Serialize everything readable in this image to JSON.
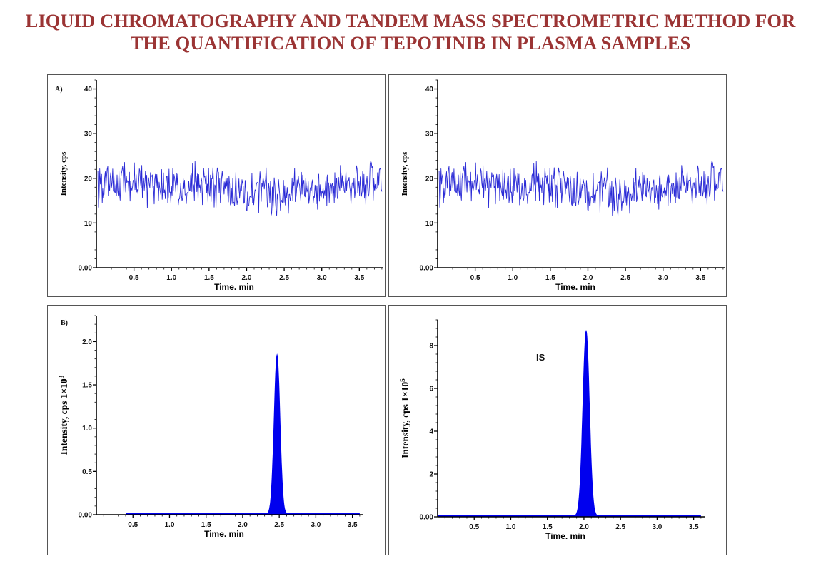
{
  "title_line1": "LIQUID CHROMATOGRAPHY AND TANDEM MASS SPECTROMETRIC METHOD FOR",
  "title_line2": "THE QUANTIFICATION OF TEPOTINIB IN PLASMA SAMPLES",
  "colors": {
    "title": "#9b3434",
    "trace": "#2a2ad6",
    "peak": "#0000ee"
  },
  "chart_data": [
    {
      "type": "line",
      "panel_label": "A)",
      "xlabel": "Time. min",
      "ylabel": "Intensity, cps",
      "xlim": [
        0.0,
        3.82
      ],
      "ylim": [
        0,
        42
      ],
      "xticks": [
        0.5,
        1.0,
        1.5,
        2.0,
        2.5,
        3.0,
        3.5
      ],
      "xtick_labels": [
        "0.5",
        "1.0",
        "1.5",
        "2.0",
        "2.5",
        "3.0",
        "3.5"
      ],
      "yticks": [
        0,
        10,
        20,
        30,
        40
      ],
      "ytick_labels": [
        "0.00",
        "10",
        "20",
        "30",
        "40"
      ],
      "grid": false,
      "series": [
        {
          "kind": "noise",
          "baseline": 18.0,
          "amplitude": 4.0,
          "min": 9.5,
          "max": 27.0,
          "points": 460,
          "seed": 7
        }
      ]
    },
    {
      "type": "line",
      "panel_label": "",
      "xlabel": "Time. min",
      "ylabel": "Intensity, cps",
      "xlim": [
        0.0,
        3.82
      ],
      "ylim": [
        0,
        42
      ],
      "xticks": [
        0.5,
        1.0,
        1.5,
        2.0,
        2.5,
        3.0,
        3.5
      ],
      "xtick_labels": [
        "0.5",
        "1.0",
        "1.5",
        "2.0",
        "2.5",
        "3.0",
        "3.5"
      ],
      "yticks": [
        0,
        10,
        20,
        30,
        40
      ],
      "ytick_labels": [
        "0.00",
        "10",
        "20",
        "30",
        "40"
      ],
      "grid": false,
      "series": [
        {
          "kind": "noise",
          "baseline": 18.0,
          "amplitude": 4.0,
          "min": 9.5,
          "max": 27.0,
          "points": 460,
          "seed": 7
        }
      ]
    },
    {
      "type": "area",
      "panel_label": "B)",
      "xlabel": "Time. min",
      "ylabel": "Intensity, cps 1×10",
      "ylabel_exponent": "3",
      "xlim": [
        0.0,
        3.65
      ],
      "ylim": [
        0,
        2.3
      ],
      "xticks": [
        0.5,
        1.0,
        1.5,
        2.0,
        2.5,
        3.0,
        3.5
      ],
      "xtick_labels": [
        "0.5",
        "1.0",
        "1.5",
        "2.0",
        "2.5",
        "3.0",
        "3.5"
      ],
      "yticks": [
        0,
        0.5,
        1.0,
        1.5,
        2.0
      ],
      "ytick_labels": [
        "0.00",
        "0.5",
        "1.0",
        "1.5",
        "2.0"
      ],
      "grid": false,
      "series": [
        {
          "kind": "peak",
          "retention_time": 2.47,
          "height": 1.84,
          "width": 0.04,
          "baseline": 0.01,
          "baseline_start": 0.4
        }
      ]
    },
    {
      "type": "area",
      "panel_label": "",
      "annotation": "IS",
      "xlabel": "Time. min",
      "ylabel": "Intensity, cps 1×10",
      "ylabel_exponent": "5",
      "xlim": [
        0.0,
        3.65
      ],
      "ylim": [
        0,
        9.2
      ],
      "xticks": [
        0.5,
        1.0,
        1.5,
        2.0,
        2.5,
        3.0,
        3.5
      ],
      "xtick_labels": [
        "0.5",
        "1.0",
        "1.5",
        "2.0",
        "2.5",
        "3.0",
        "3.5"
      ],
      "yticks": [
        0,
        2,
        4,
        6,
        8
      ],
      "ytick_labels": [
        "0.00",
        "2",
        "4",
        "6",
        "8"
      ],
      "grid": false,
      "series": [
        {
          "kind": "peak",
          "retention_time": 2.03,
          "height": 8.65,
          "width": 0.045,
          "baseline": 0.04,
          "baseline_start": 0.0
        }
      ]
    }
  ]
}
